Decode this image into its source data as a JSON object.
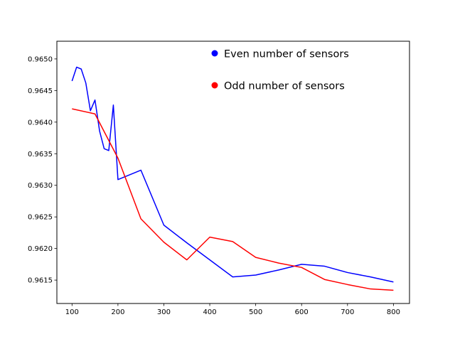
{
  "chart_data": {
    "type": "line",
    "title": "",
    "xlabel": "",
    "ylabel": "",
    "xlim": [
      67,
      835
    ],
    "ylim": [
      0.96113,
      0.96528
    ],
    "x_ticks": [
      100,
      200,
      300,
      400,
      500,
      600,
      700,
      800
    ],
    "x_tick_labels": [
      "100",
      "200",
      "300",
      "400",
      "500",
      "600",
      "700",
      "800"
    ],
    "y_ticks": [
      0.9615,
      0.962,
      0.9625,
      0.963,
      0.9635,
      0.964,
      0.9645,
      0.965
    ],
    "y_tick_labels": [
      "0.9615",
      "0.9620",
      "0.9625",
      "0.9630",
      "0.9635",
      "0.9640",
      "0.9645",
      "0.9650"
    ],
    "grid": false,
    "legend": {
      "placement": "top-right",
      "frame": false
    },
    "series": [
      {
        "name": "Even number of sensors",
        "color": "#0000ff",
        "x": [
          100,
          110,
          120,
          130,
          140,
          150,
          160,
          170,
          180,
          190,
          200,
          250,
          300,
          350,
          400,
          450,
          500,
          550,
          600,
          650,
          700,
          750,
          800
        ],
        "y": [
          0.96465,
          0.96487,
          0.96484,
          0.96462,
          0.96418,
          0.96435,
          0.96386,
          0.96358,
          0.96355,
          0.96427,
          0.96309,
          0.96324,
          0.96237,
          0.96209,
          0.96182,
          0.96155,
          0.96158,
          0.96166,
          0.96175,
          0.96172,
          0.96162,
          0.96155,
          0.96147
        ]
      },
      {
        "name": "Odd number of sensors",
        "color": "#ff0000",
        "x": [
          100,
          150,
          200,
          250,
          300,
          350,
          400,
          450,
          500,
          550,
          600,
          650,
          700,
          750,
          800
        ],
        "y": [
          0.96421,
          0.96413,
          0.96343,
          0.96247,
          0.9621,
          0.96182,
          0.96218,
          0.96211,
          0.96186,
          0.96177,
          0.9617,
          0.96151,
          0.96143,
          0.96136,
          0.96134
        ]
      }
    ]
  }
}
